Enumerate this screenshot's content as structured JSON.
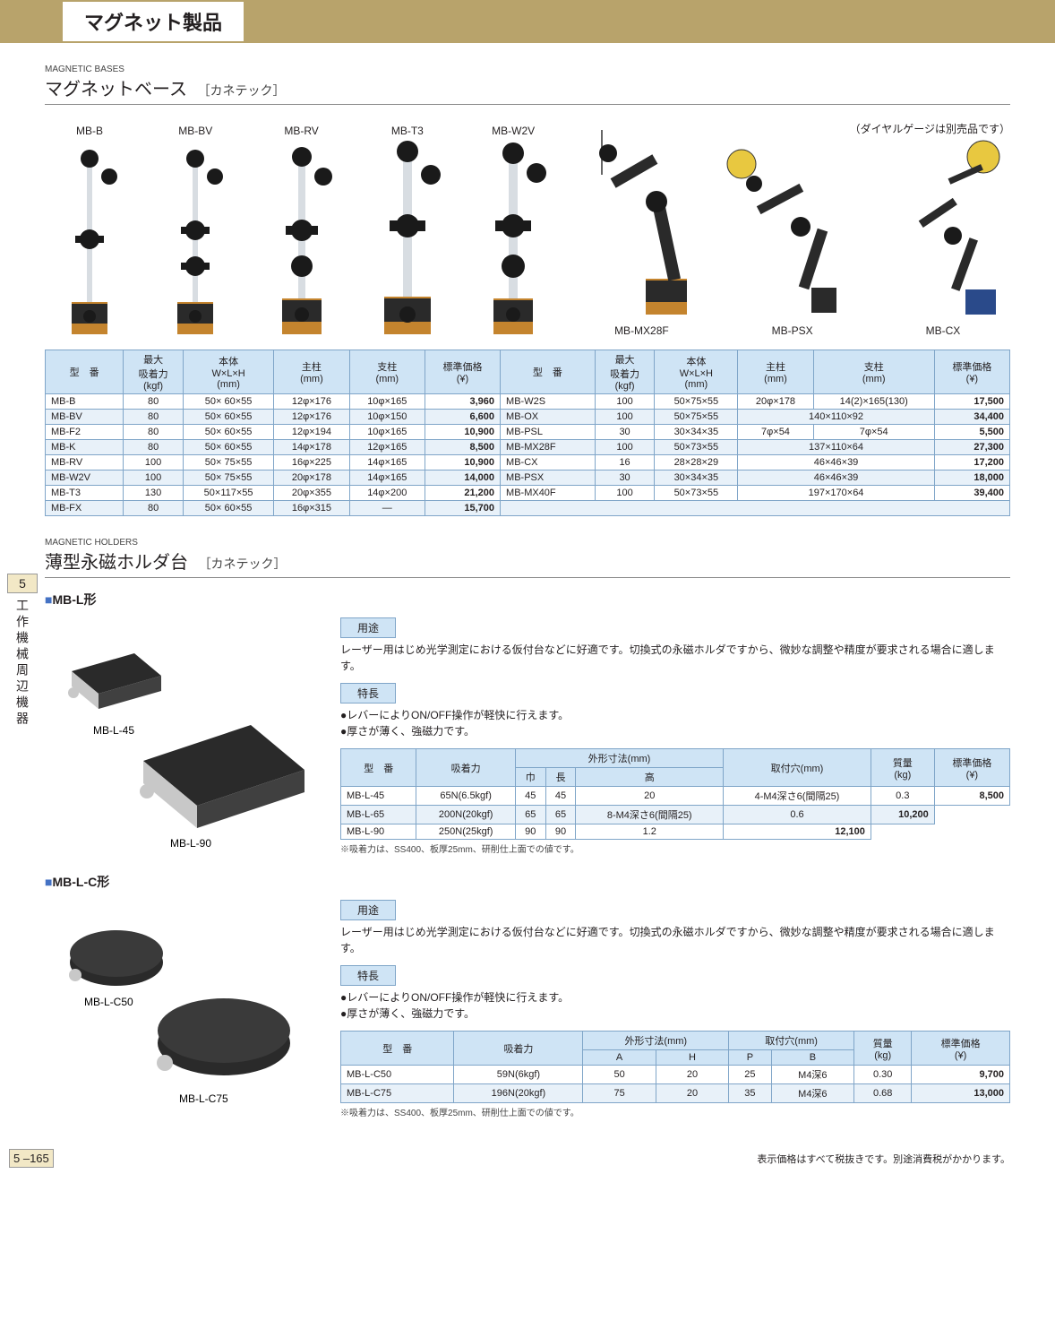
{
  "header": {
    "title": "マグネット製品"
  },
  "section1": {
    "eyebrow": "MAGNETIC BASES",
    "title": "マグネットベース",
    "brand": "［カネテック］",
    "gaugeNote": "（ダイヤルゲージは別売品です）",
    "gallery": [
      "MB-B",
      "MB-BV",
      "MB-RV",
      "MB-T3",
      "MB-W2V",
      "MB-MX28F",
      "MB-PSX",
      "MB-CX"
    ],
    "table": {
      "headers": [
        "型　番",
        "最大\n吸着力\n(kgf)",
        "本体\nW×L×H\n(mm)",
        "主柱\n(mm)",
        "支柱\n(mm)",
        "標準価格\n(¥)",
        "型　番",
        "最大\n吸着力\n(kgf)",
        "本体\nW×L×H\n(mm)",
        "主柱\n(mm)",
        "支柱\n(mm)",
        "標準価格\n(¥)"
      ],
      "rows": [
        {
          "l": [
            "MB-B",
            "80",
            "50× 60×55",
            "12φ×176",
            "10φ×165",
            "3,960"
          ],
          "r": [
            "MB-W2S",
            "100",
            "50×75×55",
            "20φ×178",
            "14(2)×165(130)",
            "17,500"
          ]
        },
        {
          "l": [
            "MB-BV",
            "80",
            "50× 60×55",
            "12φ×176",
            "10φ×150",
            "6,600"
          ],
          "r": [
            "MB-OX",
            "100",
            "50×75×55",
            "140×110×92",
            "",
            "34,400"
          ],
          "mergeR": true
        },
        {
          "l": [
            "MB-F2",
            "80",
            "50× 60×55",
            "12φ×194",
            "10φ×165",
            "10,900"
          ],
          "r": [
            "MB-PSL",
            "30",
            "30×34×35",
            "7φ×54",
            "7φ×54",
            "5,500"
          ]
        },
        {
          "l": [
            "MB-K",
            "80",
            "50× 60×55",
            "14φ×178",
            "12φ×165",
            "8,500"
          ],
          "r": [
            "MB-MX28F",
            "100",
            "50×73×55",
            "137×110×64",
            "",
            "27,300"
          ],
          "mergeR": true
        },
        {
          "l": [
            "MB-RV",
            "100",
            "50× 75×55",
            "16φ×225",
            "14φ×165",
            "10,900"
          ],
          "r": [
            "MB-CX",
            "16",
            "28×28×29",
            "46×46×39",
            "",
            "17,200"
          ],
          "mergeR": true
        },
        {
          "l": [
            "MB-W2V",
            "100",
            "50× 75×55",
            "20φ×178",
            "14φ×165",
            "14,000"
          ],
          "r": [
            "MB-PSX",
            "30",
            "30×34×35",
            "46×46×39",
            "",
            "18,000"
          ],
          "mergeR": true
        },
        {
          "l": [
            "MB-T3",
            "130",
            "50×117×55",
            "20φ×355",
            "14φ×200",
            "21,200"
          ],
          "r": [
            "MB-MX40F",
            "100",
            "50×73×55",
            "197×170×64",
            "",
            "39,400"
          ],
          "mergeR": true
        },
        {
          "l": [
            "MB-FX",
            "80",
            "50× 60×55",
            "16φ×315",
            "—",
            "15,700"
          ],
          "r": null
        }
      ]
    }
  },
  "sideTab": {
    "num": "5",
    "text": "工作機械周辺機器"
  },
  "section2": {
    "eyebrow": "MAGNETIC HOLDERS",
    "title": "薄型永磁ホルダ台",
    "brand": "［カネテック］",
    "groupA": {
      "head": "MB-L形",
      "imgLabels": [
        "MB-L-45",
        "MB-L-90"
      ],
      "useLabel": "用途",
      "useText": "レーザー用はじめ光学測定における仮付台などに好適です。切換式の永磁ホルダですから、微妙な調整や精度が要求される場合に適します。",
      "featLabel": "特長",
      "featBullets": [
        "レバーによりON/OFF操作が軽快に行えます。",
        "厚さが薄く、強磁力です。"
      ],
      "tableHead1": [
        "型　番",
        "吸着力",
        "外形寸法(mm)",
        "取付穴(mm)",
        "質量\n(kg)",
        "標準価格\n(¥)"
      ],
      "tableHead2": [
        "巾",
        "長",
        "高"
      ],
      "rows": [
        [
          "MB-L-45",
          "65N(6.5kgf)",
          "45",
          "45",
          "20",
          "4-M4深さ6(間隔25)",
          "0.3",
          "8,500"
        ],
        [
          "MB-L-65",
          "200N(20kgf)",
          "65",
          "65",
          "",
          "8-M4深さ6(間隔25)",
          "0.6",
          "10,200"
        ],
        [
          "MB-L-90",
          "250N(25kgf)",
          "90",
          "90",
          "",
          "",
          "1.2",
          "12,100"
        ]
      ],
      "footnote": "※吸着力は、SS400、板厚25mm、研削仕上面での値です。"
    },
    "groupB": {
      "head": "MB-L-C形",
      "imgLabels": [
        "MB-L-C50",
        "MB-L-C75"
      ],
      "useLabel": "用途",
      "useText": "レーザー用はじめ光学測定における仮付台などに好適です。切換式の永磁ホルダですから、微妙な調整や精度が要求される場合に適します。",
      "featLabel": "特長",
      "featBullets": [
        "レバーによりON/OFF操作が軽快に行えます。",
        "厚さが薄く、強磁力です。"
      ],
      "tableHead1": [
        "型　番",
        "吸着力",
        "外形寸法(mm)",
        "取付穴(mm)",
        "質量\n(kg)",
        "標準価格\n(¥)"
      ],
      "tableHead2": [
        "A",
        "H",
        "P",
        "B"
      ],
      "rows": [
        [
          "MB-L-C50",
          "59N(6kgf)",
          "50",
          "20",
          "25",
          "M4深6",
          "0.30",
          "9,700"
        ],
        [
          "MB-L-C75",
          "196N(20kgf)",
          "75",
          "20",
          "35",
          "M4深6",
          "0.68",
          "13,000"
        ]
      ],
      "footnote": "※吸着力は、SS400、板厚25mm、研削仕上面での値です。"
    }
  },
  "footer": {
    "pageNum": "5 –165",
    "taxNote": "表示価格はすべて税抜きです。別途消費税がかかります。"
  },
  "colors": {
    "headerBg": "#b8a36b",
    "thBg": "#cfe4f5",
    "zebra": "#e8f1f9",
    "border": "#7fa5c8",
    "baseBody": "#c4842e",
    "baseFront": "#2a2a2a",
    "pole": "#d8dde2"
  }
}
